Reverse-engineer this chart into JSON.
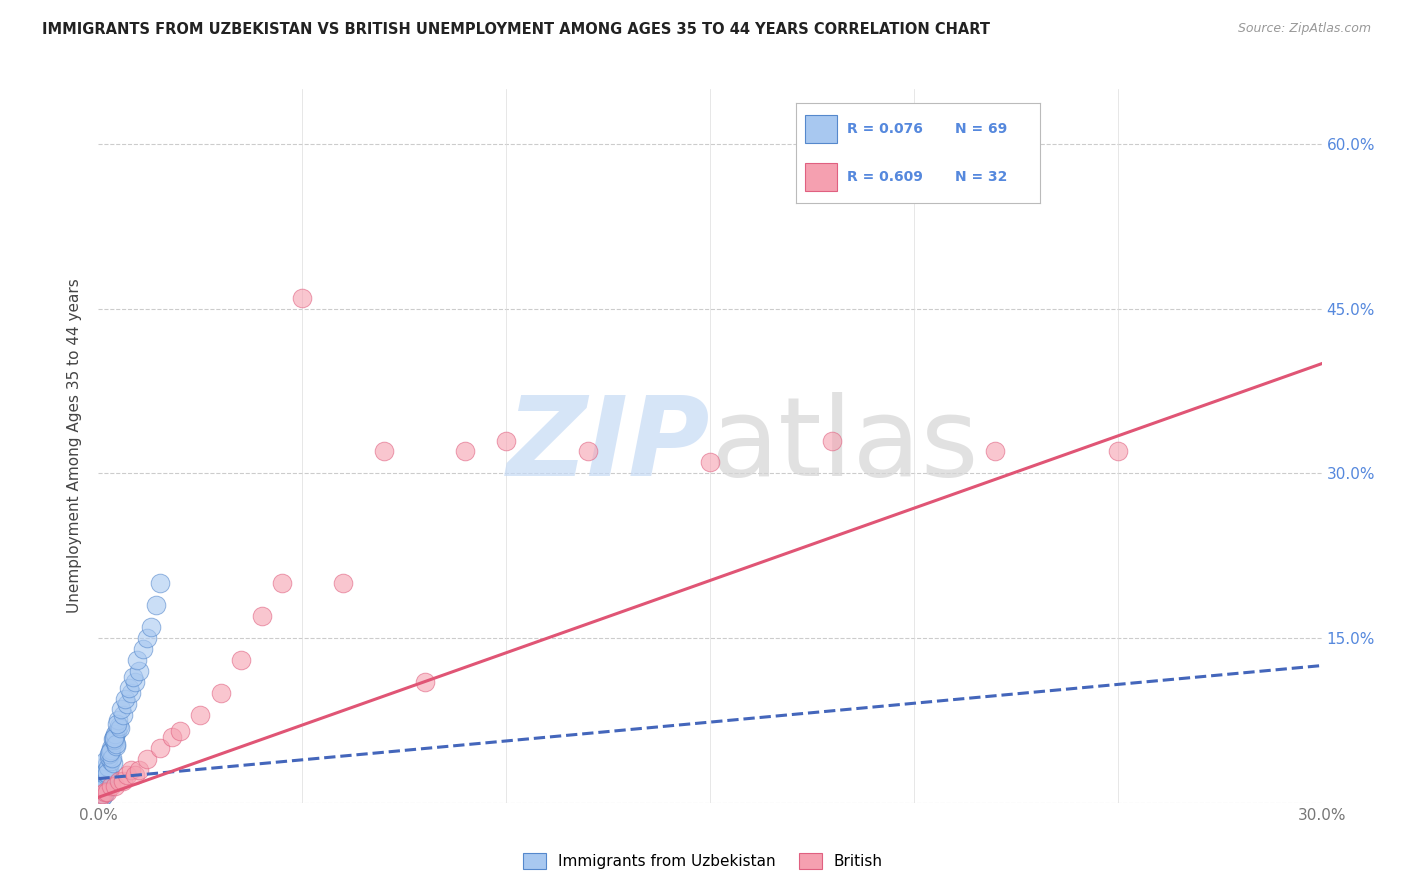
{
  "title": "IMMIGRANTS FROM UZBEKISTAN VS BRITISH UNEMPLOYMENT AMONG AGES 35 TO 44 YEARS CORRELATION CHART",
  "source": "Source: ZipAtlas.com",
  "ylabel": "Unemployment Among Ages 35 to 44 years",
  "xlim": [
    0.0,
    0.3
  ],
  "ylim": [
    0.0,
    0.65
  ],
  "x_ticks": [
    0.0,
    0.05,
    0.1,
    0.15,
    0.2,
    0.25,
    0.3
  ],
  "x_tick_labels": [
    "0.0%",
    "",
    "",
    "",
    "",
    "",
    "30.0%"
  ],
  "y_ticks": [
    0.0,
    0.15,
    0.3,
    0.45,
    0.6
  ],
  "y_tick_labels": [
    "",
    "15.0%",
    "30.0%",
    "45.0%",
    "60.0%"
  ],
  "background_color": "#ffffff",
  "blue_fill": "#a8c8f0",
  "blue_edge": "#5588cc",
  "pink_fill": "#f5a0b0",
  "pink_edge": "#e06080",
  "blue_trend_color": "#4466bb",
  "pink_trend_color": "#e05575",
  "tick_label_color": "#5588dd",
  "uzbek_scatter_x": [
    0.0005,
    0.001,
    0.0008,
    0.0012,
    0.0006,
    0.0015,
    0.0009,
    0.0007,
    0.0011,
    0.0014,
    0.0003,
    0.0004,
    0.0006,
    0.0008,
    0.001,
    0.0012,
    0.0005,
    0.0007,
    0.0009,
    0.0015,
    0.002,
    0.0018,
    0.0022,
    0.0017,
    0.0025,
    0.002,
    0.0016,
    0.0019,
    0.0023,
    0.0021,
    0.003,
    0.0028,
    0.0032,
    0.0026,
    0.0035,
    0.003,
    0.0027,
    0.0031,
    0.0033,
    0.0029,
    0.004,
    0.0038,
    0.0042,
    0.0036,
    0.0045,
    0.004,
    0.0037,
    0.0041,
    0.0043,
    0.0039,
    0.005,
    0.0048,
    0.0052,
    0.0046,
    0.006,
    0.0055,
    0.007,
    0.0065,
    0.008,
    0.0075,
    0.009,
    0.0085,
    0.01,
    0.0095,
    0.011,
    0.012,
    0.013,
    0.014,
    0.015
  ],
  "uzbek_scatter_y": [
    0.005,
    0.008,
    0.006,
    0.01,
    0.007,
    0.009,
    0.005,
    0.008,
    0.006,
    0.011,
    0.02,
    0.015,
    0.018,
    0.022,
    0.016,
    0.012,
    0.025,
    0.019,
    0.021,
    0.014,
    0.03,
    0.025,
    0.035,
    0.028,
    0.032,
    0.026,
    0.038,
    0.029,
    0.033,
    0.027,
    0.04,
    0.045,
    0.038,
    0.042,
    0.036,
    0.05,
    0.044,
    0.048,
    0.041,
    0.046,
    0.055,
    0.06,
    0.052,
    0.058,
    0.065,
    0.061,
    0.057,
    0.063,
    0.054,
    0.059,
    0.07,
    0.075,
    0.068,
    0.072,
    0.08,
    0.085,
    0.09,
    0.095,
    0.1,
    0.105,
    0.11,
    0.115,
    0.12,
    0.13,
    0.14,
    0.15,
    0.16,
    0.18,
    0.2
  ],
  "british_scatter_x": [
    0.0005,
    0.001,
    0.0015,
    0.002,
    0.003,
    0.004,
    0.005,
    0.006,
    0.007,
    0.008,
    0.009,
    0.01,
    0.012,
    0.015,
    0.018,
    0.02,
    0.025,
    0.03,
    0.035,
    0.04,
    0.045,
    0.05,
    0.06,
    0.07,
    0.08,
    0.09,
    0.1,
    0.12,
    0.15,
    0.18,
    0.22,
    0.25
  ],
  "british_scatter_y": [
    0.005,
    0.008,
    0.01,
    0.01,
    0.015,
    0.015,
    0.02,
    0.02,
    0.025,
    0.03,
    0.025,
    0.03,
    0.04,
    0.05,
    0.06,
    0.065,
    0.08,
    0.1,
    0.13,
    0.17,
    0.2,
    0.46,
    0.2,
    0.32,
    0.11,
    0.32,
    0.33,
    0.32,
    0.31,
    0.33,
    0.32,
    0.32
  ],
  "uzbek_trend_x": [
    0.0,
    0.3
  ],
  "uzbek_trend_y": [
    0.022,
    0.125
  ],
  "british_trend_x": [
    0.0,
    0.3
  ],
  "british_trend_y": [
    0.005,
    0.4
  ],
  "legend_items": [
    {
      "label_r": "R = 0.076",
      "label_n": "N = 69",
      "color": "#a8c8f0",
      "edge": "#5588cc"
    },
    {
      "label_r": "R = 0.609",
      "label_n": "N = 32",
      "color": "#f5a0b0",
      "edge": "#e06080"
    }
  ],
  "bottom_legend": [
    "Immigrants from Uzbekistan",
    "British"
  ]
}
